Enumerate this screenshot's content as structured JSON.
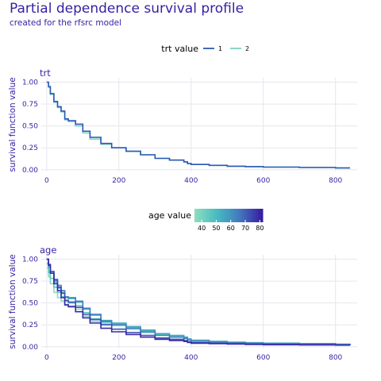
{
  "title": "Partial dependence survival profile",
  "subtitle": "created for the rfsrc model",
  "colors": {
    "text": "#371ea3",
    "grid": "#e6e6ee"
  },
  "chart_data": [
    {
      "type": "line",
      "panel_title": "trt",
      "xlabel": "",
      "ylabel": "survival function value",
      "xlim": [
        -15,
        860
      ],
      "ylim": [
        -0.02,
        1.05
      ],
      "x_ticks": [
        0,
        200,
        400,
        600,
        800
      ],
      "y_ticks": [
        0.0,
        0.25,
        0.5,
        0.75,
        1.0
      ],
      "y_tick_labels": [
        "0.00",
        "0.25",
        "0.50",
        "0.75",
        "1.00"
      ],
      "grid": true,
      "legend": {
        "title": "trt value",
        "position": "top",
        "entries": [
          "1",
          "2"
        ]
      },
      "series": [
        {
          "name": "1",
          "color": "#2b5ab5",
          "x": [
            0,
            5,
            10,
            20,
            30,
            40,
            50,
            60,
            80,
            100,
            120,
            150,
            180,
            220,
            260,
            300,
            340,
            380,
            390,
            400,
            450,
            500,
            550,
            600,
            700,
            800,
            840
          ],
          "y": [
            1.0,
            0.95,
            0.87,
            0.78,
            0.72,
            0.67,
            0.58,
            0.56,
            0.52,
            0.44,
            0.37,
            0.3,
            0.25,
            0.21,
            0.17,
            0.13,
            0.11,
            0.09,
            0.07,
            0.06,
            0.05,
            0.04,
            0.035,
            0.03,
            0.025,
            0.02,
            0.02
          ]
        },
        {
          "name": "2",
          "color": "#80cfc1",
          "x": [
            0,
            5,
            10,
            20,
            30,
            40,
            50,
            60,
            80,
            100,
            120,
            150,
            180,
            220,
            260,
            300,
            340,
            380,
            390,
            400,
            450,
            500,
            550,
            600,
            700,
            800,
            840
          ],
          "y": [
            1.0,
            0.94,
            0.86,
            0.77,
            0.71,
            0.66,
            0.57,
            0.55,
            0.5,
            0.42,
            0.35,
            0.29,
            0.25,
            0.21,
            0.17,
            0.13,
            0.11,
            0.09,
            0.07,
            0.06,
            0.05,
            0.04,
            0.035,
            0.03,
            0.025,
            0.02,
            0.02
          ]
        }
      ]
    },
    {
      "type": "line",
      "panel_title": "age",
      "xlabel": "",
      "ylabel": "survival function value",
      "xlim": [
        -15,
        860
      ],
      "ylim": [
        -0.02,
        1.05
      ],
      "x_ticks": [
        0,
        200,
        400,
        600,
        800
      ],
      "y_ticks": [
        0.0,
        0.25,
        0.5,
        0.75,
        1.0
      ],
      "y_tick_labels": [
        "0.00",
        "0.25",
        "0.50",
        "0.75",
        "1.00"
      ],
      "grid": true,
      "legend": {
        "title": "age value",
        "position": "top",
        "type": "colorbar",
        "ticks": [
          40,
          50,
          60,
          70,
          80
        ],
        "range": [
          35,
          82
        ],
        "colors": [
          "#8bdcbe",
          "#46bac2",
          "#4378bf",
          "#371ea3"
        ]
      },
      "series": [
        {
          "age": 35,
          "x": [
            0,
            5,
            10,
            20,
            30,
            40,
            50,
            60,
            80,
            100,
            120,
            150,
            180,
            220,
            260,
            300,
            340,
            380,
            390,
            400,
            450,
            500,
            550,
            600,
            700,
            800,
            840
          ],
          "y": [
            0.9,
            0.8,
            0.72,
            0.62,
            0.56,
            0.52,
            0.47,
            0.45,
            0.43,
            0.35,
            0.29,
            0.26,
            0.24,
            0.2,
            0.16,
            0.13,
            0.11,
            0.1,
            0.08,
            0.065,
            0.055,
            0.045,
            0.04,
            0.035,
            0.03,
            0.025,
            0.02
          ]
        },
        {
          "age": 45,
          "x": [
            0,
            5,
            10,
            20,
            30,
            40,
            50,
            60,
            80,
            100,
            120,
            150,
            180,
            220,
            260,
            300,
            340,
            380,
            390,
            400,
            450,
            500,
            550,
            600,
            700,
            800,
            840
          ],
          "y": [
            0.95,
            0.85,
            0.78,
            0.68,
            0.62,
            0.57,
            0.52,
            0.5,
            0.47,
            0.39,
            0.32,
            0.28,
            0.26,
            0.22,
            0.18,
            0.14,
            0.12,
            0.1,
            0.085,
            0.07,
            0.06,
            0.05,
            0.045,
            0.04,
            0.035,
            0.028,
            0.025
          ]
        },
        {
          "age": 55,
          "x": [
            0,
            5,
            10,
            20,
            30,
            40,
            50,
            60,
            80,
            100,
            120,
            150,
            180,
            220,
            260,
            300,
            340,
            380,
            390,
            400,
            450,
            500,
            550,
            600,
            700,
            800,
            840
          ],
          "y": [
            1.0,
            0.91,
            0.84,
            0.74,
            0.67,
            0.62,
            0.56,
            0.55,
            0.51,
            0.43,
            0.36,
            0.3,
            0.27,
            0.23,
            0.19,
            0.15,
            0.13,
            0.11,
            0.09,
            0.075,
            0.062,
            0.052,
            0.046,
            0.041,
            0.036,
            0.03,
            0.026
          ]
        },
        {
          "age": 65,
          "x": [
            0,
            5,
            10,
            20,
            30,
            40,
            50,
            60,
            80,
            100,
            120,
            150,
            180,
            220,
            260,
            300,
            340,
            380,
            390,
            400,
            450,
            500,
            550,
            600,
            700,
            800,
            840
          ],
          "y": [
            1.0,
            0.93,
            0.86,
            0.77,
            0.7,
            0.64,
            0.57,
            0.56,
            0.52,
            0.44,
            0.37,
            0.29,
            0.25,
            0.21,
            0.17,
            0.13,
            0.11,
            0.095,
            0.075,
            0.062,
            0.052,
            0.045,
            0.038,
            0.034,
            0.03,
            0.025,
            0.022
          ]
        },
        {
          "age": 73,
          "x": [
            0,
            5,
            10,
            20,
            30,
            40,
            50,
            60,
            80,
            100,
            120,
            150,
            180,
            220,
            260,
            300,
            340,
            380,
            390,
            400,
            450,
            500,
            550,
            600,
            700,
            800,
            840
          ],
          "y": [
            1.0,
            0.94,
            0.86,
            0.76,
            0.68,
            0.61,
            0.53,
            0.51,
            0.45,
            0.37,
            0.31,
            0.25,
            0.2,
            0.16,
            0.13,
            0.1,
            0.085,
            0.07,
            0.055,
            0.045,
            0.04,
            0.034,
            0.03,
            0.027,
            0.024,
            0.02,
            0.018
          ]
        },
        {
          "age": 80,
          "x": [
            0,
            5,
            10,
            20,
            30,
            40,
            50,
            60,
            80,
            100,
            120,
            150,
            180,
            220,
            260,
            300,
            340,
            380,
            390,
            400,
            450,
            500,
            550,
            600,
            700,
            800,
            840
          ],
          "y": [
            1.0,
            0.93,
            0.84,
            0.72,
            0.64,
            0.56,
            0.48,
            0.46,
            0.4,
            0.33,
            0.27,
            0.21,
            0.17,
            0.14,
            0.11,
            0.085,
            0.07,
            0.06,
            0.048,
            0.04,
            0.035,
            0.03,
            0.026,
            0.023,
            0.02,
            0.018,
            0.016
          ]
        }
      ]
    }
  ]
}
